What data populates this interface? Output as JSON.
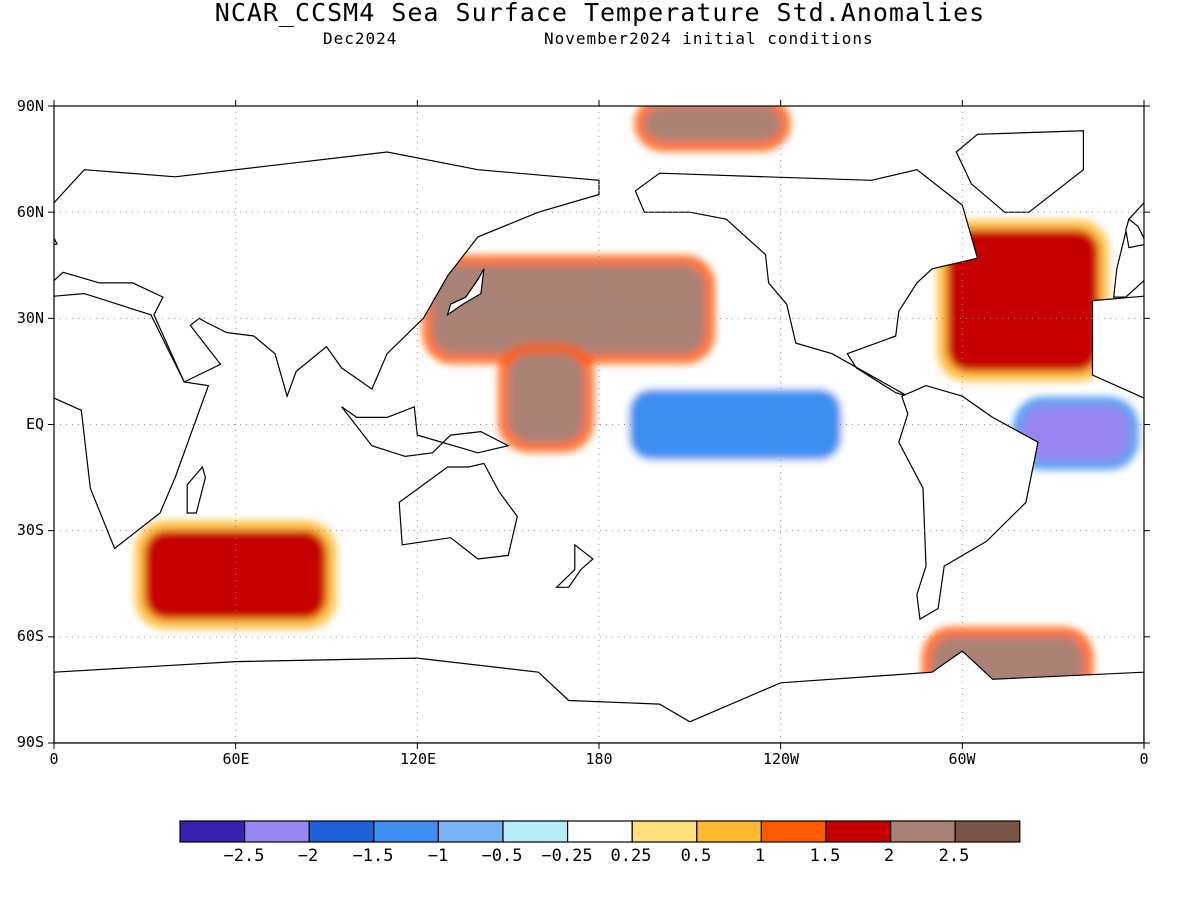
{
  "title": "NCAR_CCSM4 Sea Surface Temperature Std.Anomalies",
  "valid_month": "Dec2024",
  "init_conditions": "November2024 initial conditions",
  "y_labels": [
    "90N",
    "60N",
    "30N",
    "EQ",
    "30S",
    "60S",
    "90S"
  ],
  "x_labels": [
    "0",
    "60E",
    "120E",
    "180",
    "120W",
    "60W",
    "0"
  ],
  "colorbar": {
    "colors": [
      "#3a1fb3",
      "#9a86f2",
      "#1e5fdc",
      "#3d8ef0",
      "#78b4f5",
      "#b4ecf7",
      "#ffffff",
      "#fee07a",
      "#ffb830",
      "#ff5a00",
      "#c60000",
      "#aa8175",
      "#7a5446"
    ],
    "labels": [
      "-2.5",
      "-2",
      "-1.5",
      "-1",
      "-0.5",
      "-0.25",
      "0.25",
      "0.5",
      "1",
      "1.5",
      "2",
      "2.5"
    ]
  },
  "chart_data": {
    "type": "heatmap",
    "title": "NCAR_CCSM4 Sea Surface Temperature Std.Anomalies",
    "subtitle": [
      "Dec2024",
      "November2024 initial conditions"
    ],
    "projection": "equirectangular, 0-360 longitude",
    "x_range_deg_east": [
      0,
      360
    ],
    "y_range_deg": [
      -90,
      90
    ],
    "grid": "dotted every 60 degrees longitude and 30 degrees latitude",
    "contour_levels": [
      -2.5,
      -2,
      -1.5,
      -1,
      -0.5,
      -0.25,
      0.25,
      0.5,
      1,
      1.5,
      2,
      2.5
    ],
    "anomaly_regions": [
      {
        "lon": [
          125,
          215
        ],
        "lat": [
          20,
          45
        ],
        "category": 2.5
      },
      {
        "lon": [
          150,
          175
        ],
        "lat": [
          -5,
          20
        ],
        "category": 2.5
      },
      {
        "lon": [
          190,
          260
        ],
        "lat": [
          -10,
          10
        ],
        "category": -1
      },
      {
        "lon": [
          295,
          345
        ],
        "lat": [
          15,
          55
        ],
        "category": 2
      },
      {
        "lon": [
          30,
          90
        ],
        "lat": [
          -55,
          -30
        ],
        "category": 2
      },
      {
        "lon": [
          195,
          240
        ],
        "lat": [
          80,
          90
        ],
        "category": 2.5
      },
      {
        "lon": [
          320,
          355
        ],
        "lat": [
          -10,
          5
        ],
        "category": -2
      },
      {
        "lon": [
          290,
          340
        ],
        "lat": [
          -75,
          -60
        ],
        "category": 2.5
      }
    ]
  }
}
